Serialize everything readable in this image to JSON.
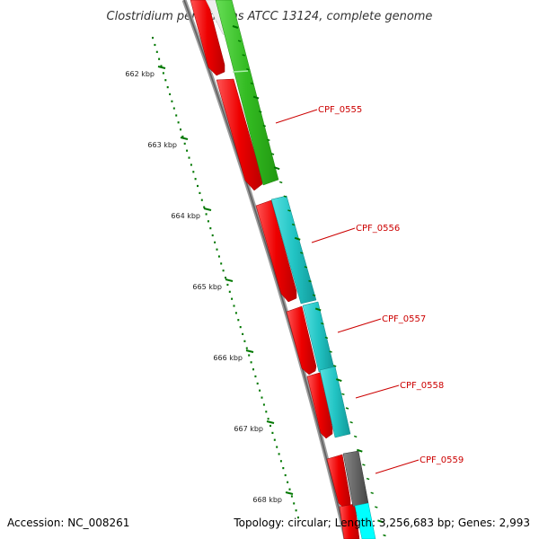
{
  "title": "Clostridium perfringens ATCC 13124, complete genome",
  "footer": {
    "accession": "Accession: NC_008261",
    "summary": "Topology: circular; Length: 3,256,683 bp; Genes: 2,993"
  },
  "scale": {
    "labels": [
      "662 kbp",
      "663 kbp",
      "664 kbp",
      "665 kbp",
      "666 kbp",
      "667 kbp",
      "668 kbp"
    ]
  },
  "genes": [
    {
      "label": "CPF_0555"
    },
    {
      "label": "CPF_0556"
    },
    {
      "label": "CPF_0557"
    },
    {
      "label": "CPF_0558"
    },
    {
      "label": "CPF_0559"
    }
  ],
  "colors": {
    "forward_cds": "#ee1111",
    "green_feature": "#44cc33",
    "cyan_feature": "#22cccc",
    "grey_feature": "#666666",
    "bright_cyan_feature": "#00ffff",
    "backbone": "#777777",
    "tick": "#007700",
    "label_line": "#cc0000"
  }
}
